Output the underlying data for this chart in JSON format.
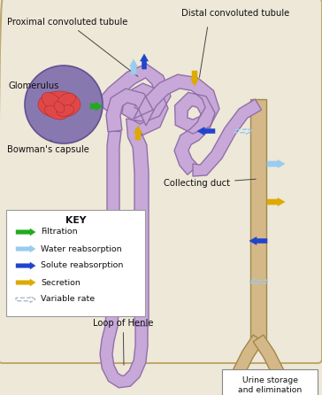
{
  "bg_color": "#ede8d8",
  "border_color": "#c0a870",
  "tubule_fill": "#c8a8d8",
  "tubule_edge": "#9070a8",
  "collecting_fill": "#d4b888",
  "collecting_edge": "#a08848",
  "glom_bg": "#8878b0",
  "glom_edge": "#605090",
  "glom_red": "#e04848",
  "glom_red_edge": "#b02828",
  "filtration_color": "#22aa22",
  "water_color": "#99ccee",
  "solute_color": "#2244cc",
  "secretion_color": "#ddaa00",
  "variable_color": "#aabbcc",
  "urine_color": "#eeff00",
  "key_bg": "#ffffff",
  "key_edge": "#999999",
  "text_color": "#111111",
  "label_fs": 7.2,
  "key_fs": 6.8,
  "proximal_label": "Proximal convoluted tubule",
  "distal_label": "Distal convoluted tubule",
  "glom_label": "Glomerulus",
  "bowman_label": "Bowman's capsule",
  "collect_label": "Collecting duct",
  "loop_label": "Loop of Henle",
  "urine_label": "Urine storage\nand elimination",
  "key_title": "KEY",
  "key_items": [
    [
      "Filtration",
      "#22aa22",
      false
    ],
    [
      "Water reabsorption",
      "#99ccee",
      false
    ],
    [
      "Solute reabsorption",
      "#2244cc",
      false
    ],
    [
      "Secretion",
      "#ddaa00",
      false
    ],
    [
      "Variable rate",
      "#aabbcc",
      true
    ]
  ]
}
